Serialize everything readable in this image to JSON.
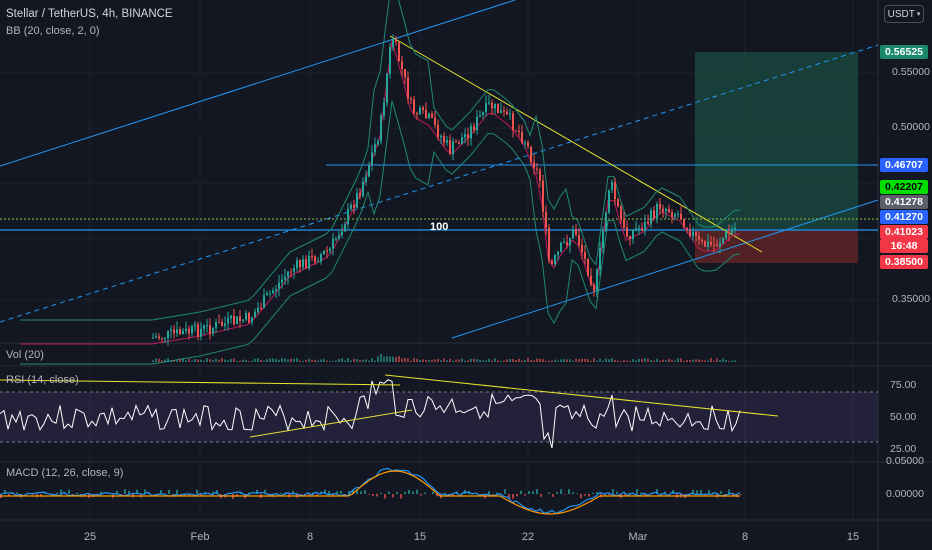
{
  "header": {
    "symbol_line": "Stellar / TetherUS, 4h, BINANCE",
    "bb_line": "BB (20, close, 2, 0)",
    "currency": "USDT"
  },
  "level_label": "100",
  "price_axis": {
    "ticks": [
      "0.55000",
      "0.50000",
      "0.35000"
    ],
    "tags": [
      {
        "text": "0.56525",
        "bg": "#1b8a6b",
        "fg": "#ffffff"
      },
      {
        "text": "0.46707",
        "bg": "#2962ff",
        "fg": "#ffffff"
      },
      {
        "text": "0.42207",
        "bg": "#00e000",
        "fg": "#000000"
      },
      {
        "text": "0.41278",
        "bg": "#5d606b",
        "fg": "#ffffff"
      },
      {
        "text": "0.41270",
        "bg": "#2962ff",
        "fg": "#ffffff"
      },
      {
        "text": "0.41023",
        "bg": "#f23645",
        "fg": "#ffffff"
      },
      {
        "text": "16:48",
        "bg": "#f23645",
        "fg": "#ffffff"
      },
      {
        "text": "0.38500",
        "bg": "#f23645",
        "fg": "#ffffff"
      }
    ]
  },
  "volume_pane": {
    "label": "Vol (20)"
  },
  "rsi_pane": {
    "label": "RSI (14, close)",
    "ticks": [
      "75.00",
      "50.00",
      "25.00"
    ]
  },
  "macd_pane": {
    "label": "MACD (12, 26, close, 9)",
    "ticks": [
      "0.05000",
      "0.00000"
    ]
  },
  "time_axis": {
    "labels": [
      "25",
      "Feb",
      "8",
      "15",
      "22",
      "Mar",
      "8",
      "15"
    ]
  },
  "colors": {
    "background": "#131722",
    "up": "#26a69a",
    "down": "#ef5350",
    "trendline": "#e6e62e",
    "channel": "#2196f3",
    "rsi_line": "#ffffff",
    "rsi_band": "#7e57c2",
    "bb_band": "#1f8a70",
    "bb_basis": "#c2185b",
    "macd_line": "#2196f3",
    "signal_line": "#ff9800",
    "target_zone": "#1b5e4a",
    "stop_zone": "#7a2a2a"
  }
}
